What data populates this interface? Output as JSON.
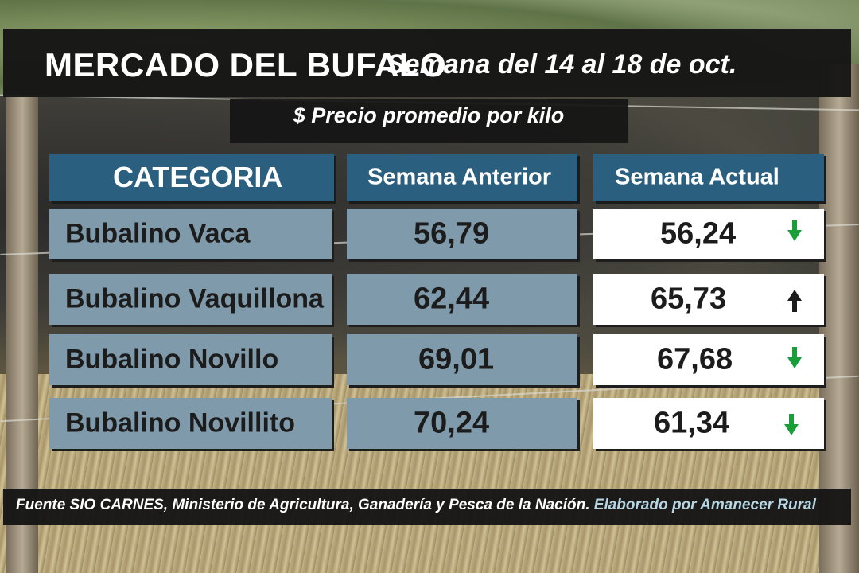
{
  "header": {
    "title": "MERCADO DEL BUFALO",
    "week": "Semana del 14 al 18 de oct."
  },
  "subtitle": "$ Precio promedio por kilo",
  "table": {
    "columns": [
      "CATEGORIA",
      "Semana Anterior",
      "Semana Actual"
    ],
    "rows": [
      {
        "category": "Bubalino Vaca",
        "previous": "56,79",
        "current": "56,24",
        "trend": "down"
      },
      {
        "category": "Bubalino Vaquillona",
        "previous": "62,44",
        "current": "65,73",
        "trend": "up"
      },
      {
        "category": "Bubalino Novillo",
        "previous": "69,01",
        "current": "67,68",
        "trend": "down"
      },
      {
        "category": "Bubalino Novillito",
        "previous": "70,24",
        "current": "61,34",
        "trend": "down"
      }
    ]
  },
  "footer": {
    "source": "Fuente SIO CARNES,  Ministerio de Agricultura, Ganadería y Pesca de la Nación.",
    "credit": "Elaborado por  Amanecer Rural"
  },
  "colors": {
    "header_blue": "#2b5f80",
    "cell_blue": "#7f9aaa",
    "arrow_down": "#1a9e3a",
    "arrow_up": "#1c1c1c",
    "footer_accent": "#b6d6e4"
  },
  "icons": {
    "down": "arrow-down-icon",
    "up": "arrow-up-icon"
  }
}
